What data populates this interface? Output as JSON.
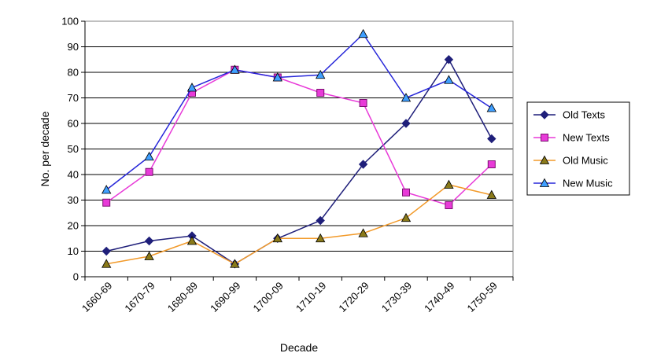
{
  "chart_data": {
    "type": "line",
    "title": "",
    "xlabel": "Decade",
    "ylabel": "No. per decade",
    "categories": [
      "1660-69",
      "1670-79",
      "1680-89",
      "1690-99",
      "1700-09",
      "1710-19",
      "1720-29",
      "1730-39",
      "1740-49",
      "1750-59"
    ],
    "ylim": [
      0,
      100
    ],
    "yticks": [
      0,
      10,
      20,
      30,
      40,
      50,
      60,
      70,
      80,
      90,
      100
    ],
    "grid": true,
    "legend_position": "right",
    "series": [
      {
        "name": "Old Texts",
        "color": "#1f1f7a",
        "marker": "diamond",
        "marker_fill": "#1f1f7a",
        "values": [
          10,
          14,
          16,
          5,
          15,
          22,
          44,
          60,
          85,
          54
        ]
      },
      {
        "name": "New Texts",
        "color": "#e83ad8",
        "marker": "square",
        "marker_fill": "#e83ad8",
        "values": [
          29,
          41,
          72,
          81,
          78,
          72,
          68,
          33,
          28,
          44
        ]
      },
      {
        "name": "Old Music",
        "color": "#f29a2a",
        "marker": "triangle",
        "marker_fill": "#8a7a1a",
        "values": [
          5,
          8,
          14,
          5,
          15,
          15,
          17,
          23,
          36,
          32
        ]
      },
      {
        "name": "New Music",
        "color": "#2626d9",
        "marker": "triangle",
        "marker_fill": "#3f9fff",
        "values": [
          34,
          47,
          74,
          81,
          78,
          79,
          95,
          70,
          77,
          66
        ]
      }
    ]
  }
}
